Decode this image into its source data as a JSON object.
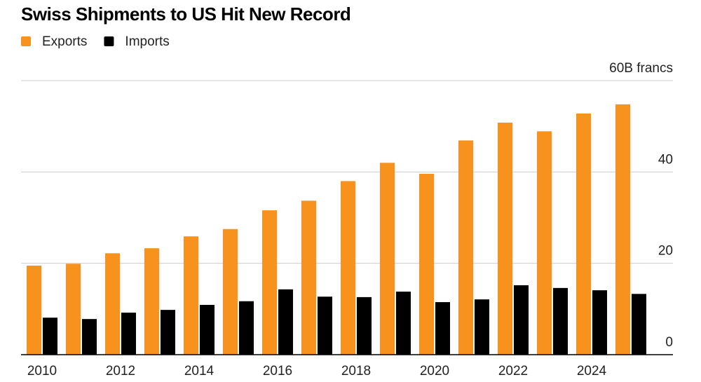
{
  "chart_data": {
    "type": "bar",
    "title": "Swiss Shipments to US Hit New Record",
    "categories": [
      "2010",
      null,
      "2012",
      null,
      "2014",
      null,
      "2016",
      null,
      "2018",
      null,
      "2020",
      null,
      "2022",
      null,
      "2024",
      null
    ],
    "series": [
      {
        "name": "Exports",
        "color": "#f7921e",
        "values": [
          19.5,
          19.9,
          22.2,
          23.3,
          25.9,
          27.5,
          31.6,
          33.7,
          38.0,
          42.0,
          39.6,
          46.9,
          50.8,
          48.9,
          52.8,
          54.8
        ]
      },
      {
        "name": "Imports",
        "color": "#000000",
        "values": [
          8.1,
          7.8,
          9.2,
          9.8,
          10.9,
          11.7,
          14.3,
          12.7,
          12.6,
          13.8,
          11.5,
          12.1,
          15.2,
          14.6,
          14.1,
          13.3
        ]
      }
    ],
    "ylim": [
      0,
      60
    ],
    "yticks": [
      0,
      20,
      40,
      {
        "value": 60,
        "label": "60B francs"
      }
    ],
    "grid": true
  }
}
